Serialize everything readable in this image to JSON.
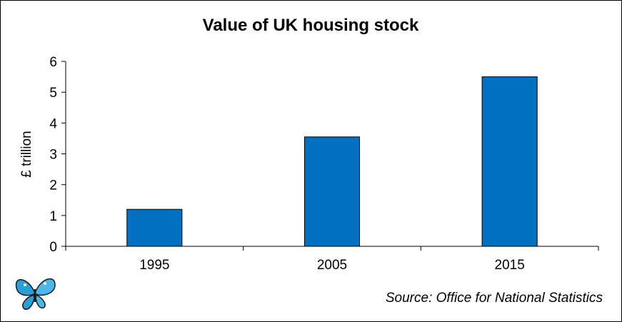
{
  "chart_data": {
    "type": "bar",
    "title": "Value of UK housing stock",
    "ylabel": "£ trillion",
    "xlabel": "",
    "categories": [
      "1995",
      "2005",
      "2015"
    ],
    "values": [
      1.2,
      3.55,
      5.5
    ],
    "ylim": [
      0,
      6
    ],
    "yticks": [
      "0",
      "1",
      "2",
      "3",
      "4",
      "5",
      "6"
    ],
    "bar_color": "#0070C0",
    "grid": false,
    "legend": "none"
  },
  "source": "Source: Office for National Statistics",
  "logo": {
    "icon": "butterfly-logo-icon"
  }
}
